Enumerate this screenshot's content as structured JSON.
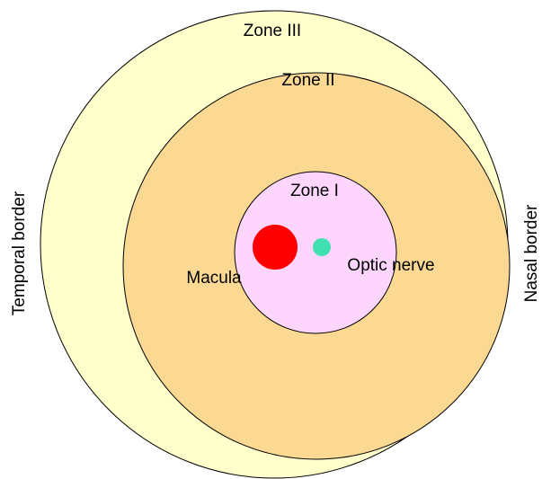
{
  "zones": [
    {
      "label": "Zone III"
    },
    {
      "label": "Zone II"
    },
    {
      "label": "Zone I"
    }
  ],
  "landmarks": [
    {
      "label": "Macula"
    },
    {
      "label": "Optic nerve"
    }
  ],
  "borders": {
    "temporal": "Temporal border",
    "nasal": "Nasal border"
  }
}
